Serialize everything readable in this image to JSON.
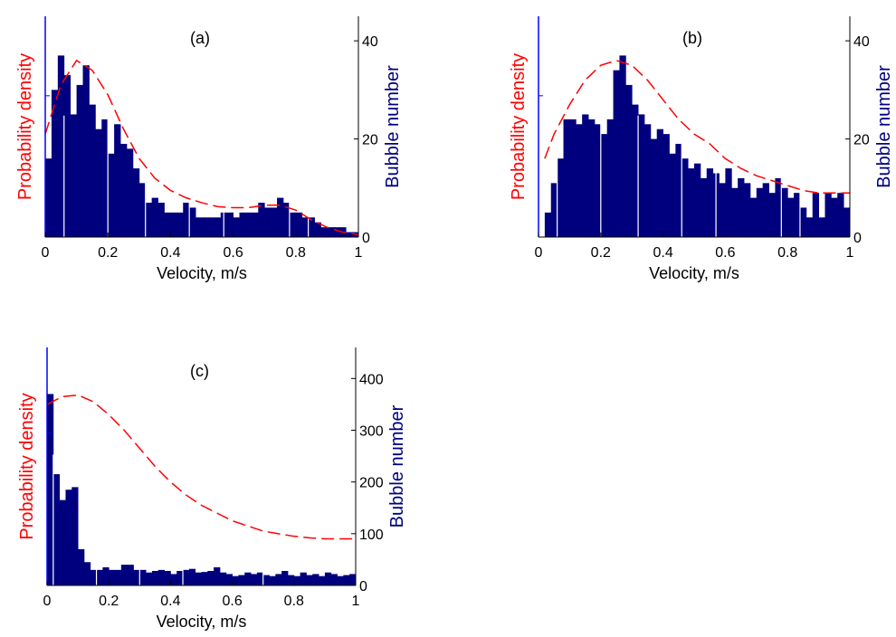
{
  "chart_data": [
    {
      "type": "bar",
      "panel_label": "(a)",
      "xlabel": "Velocity, m/s",
      "ylabel_left": "Probability density",
      "ylabel_right": "Bubble number",
      "xlim": [
        0,
        1
      ],
      "ylim_right": [
        0,
        45
      ],
      "xticks": [
        "0",
        "0.2",
        "0.4",
        "0.6",
        "0.8",
        "1"
      ],
      "yticks_right": [
        "0",
        "20",
        "40"
      ],
      "bar_width": 0.02,
      "bin_starts": [
        0,
        0.02,
        0.04,
        0.06,
        0.08,
        0.1,
        0.12,
        0.14,
        0.16,
        0.18,
        0.2,
        0.22,
        0.24,
        0.26,
        0.28,
        0.3,
        0.32,
        0.34,
        0.36,
        0.38,
        0.4,
        0.42,
        0.44,
        0.46,
        0.48,
        0.5,
        0.52,
        0.54,
        0.56,
        0.58,
        0.6,
        0.62,
        0.64,
        0.66,
        0.68,
        0.7,
        0.72,
        0.74,
        0.76,
        0.78,
        0.8,
        0.82,
        0.84,
        0.86,
        0.88,
        0.9,
        0.92,
        0.94,
        0.96,
        0.98
      ],
      "values": [
        16,
        30,
        37,
        33,
        25,
        31,
        35,
        27,
        22,
        24,
        17,
        23,
        19,
        18,
        14,
        11,
        7,
        8,
        7,
        5,
        5,
        5,
        7,
        6,
        4,
        4,
        4,
        4,
        5,
        5,
        4,
        5,
        5,
        5,
        7,
        6,
        6,
        8,
        7,
        5,
        5,
        4,
        4,
        3,
        2,
        2,
        2,
        2,
        1,
        1
      ],
      "bar_color": "#00007F",
      "curve_color": "#FF0000",
      "density_curve_right_axis_units": [
        [
          0,
          21
        ],
        [
          0.05,
          31
        ],
        [
          0.1,
          36
        ],
        [
          0.15,
          34
        ],
        [
          0.2,
          29
        ],
        [
          0.25,
          22
        ],
        [
          0.3,
          16
        ],
        [
          0.35,
          12
        ],
        [
          0.4,
          9.5
        ],
        [
          0.45,
          8
        ],
        [
          0.5,
          7
        ],
        [
          0.55,
          6.2
        ],
        [
          0.6,
          6
        ],
        [
          0.65,
          6
        ],
        [
          0.7,
          6.5
        ],
        [
          0.75,
          6.5
        ],
        [
          0.8,
          5.5
        ],
        [
          0.85,
          3.5
        ],
        [
          0.9,
          2
        ],
        [
          0.95,
          1
        ],
        [
          1,
          0.5
        ]
      ]
    },
    {
      "type": "bar",
      "panel_label": "(b)",
      "xlabel": "Velocity, m/s",
      "ylabel_left": "Probability density",
      "ylabel_right": "Bubble number",
      "xlim": [
        0,
        1
      ],
      "ylim_right": [
        0,
        45
      ],
      "xticks": [
        "0",
        "0.2",
        "0.4",
        "0.6",
        "0.8",
        "1"
      ],
      "yticks_right": [
        "0",
        "20",
        "40"
      ],
      "bar_width": 0.02,
      "bin_starts": [
        0,
        0.02,
        0.04,
        0.06,
        0.08,
        0.1,
        0.12,
        0.14,
        0.16,
        0.18,
        0.2,
        0.22,
        0.24,
        0.26,
        0.28,
        0.3,
        0.32,
        0.34,
        0.36,
        0.38,
        0.4,
        0.42,
        0.44,
        0.46,
        0.48,
        0.5,
        0.52,
        0.54,
        0.56,
        0.58,
        0.6,
        0.62,
        0.64,
        0.66,
        0.68,
        0.7,
        0.72,
        0.74,
        0.76,
        0.78,
        0.8,
        0.82,
        0.84,
        0.86,
        0.88,
        0.9,
        0.92,
        0.94,
        0.96,
        0.98
      ],
      "values": [
        0,
        5,
        11,
        16,
        24,
        24,
        23,
        25,
        24,
        23,
        21,
        24,
        34,
        37,
        31,
        27,
        25,
        23,
        20,
        22,
        21,
        17,
        19,
        16,
        14,
        15,
        12,
        14,
        13,
        11,
        14,
        10,
        12,
        11,
        8,
        10,
        11,
        9,
        12,
        10,
        8,
        9,
        6,
        4,
        9,
        4,
        9,
        8,
        9,
        6
      ],
      "bar_color": "#00007F",
      "curve_color": "#FF0000",
      "density_curve_right_axis_units": [
        [
          0.02,
          16
        ],
        [
          0.05,
          21
        ],
        [
          0.1,
          27
        ],
        [
          0.15,
          32
        ],
        [
          0.2,
          35
        ],
        [
          0.25,
          36
        ],
        [
          0.3,
          35
        ],
        [
          0.35,
          32
        ],
        [
          0.4,
          28
        ],
        [
          0.45,
          24
        ],
        [
          0.5,
          21
        ],
        [
          0.55,
          19
        ],
        [
          0.6,
          16
        ],
        [
          0.65,
          14
        ],
        [
          0.7,
          12.5
        ],
        [
          0.75,
          11.5
        ],
        [
          0.8,
          10.5
        ],
        [
          0.85,
          9.5
        ],
        [
          0.9,
          9
        ],
        [
          0.95,
          9
        ],
        [
          1,
          9
        ]
      ]
    },
    {
      "type": "bar",
      "panel_label": "(c)",
      "xlabel": "Velocity, m/s",
      "ylabel_left": "Probability density",
      "ylabel_right": "Bubble number",
      "xlim": [
        0,
        1
      ],
      "ylim_right": [
        0,
        460
      ],
      "xticks": [
        "0",
        "0.2",
        "0.4",
        "0.6",
        "0.8",
        "1"
      ],
      "yticks_right": [
        "0",
        "100",
        "200",
        "300",
        "400"
      ],
      "bar_width": 0.02,
      "bin_starts": [
        0,
        0.02,
        0.04,
        0.06,
        0.08,
        0.1,
        0.12,
        0.14,
        0.16,
        0.18,
        0.2,
        0.22,
        0.24,
        0.26,
        0.28,
        0.3,
        0.32,
        0.34,
        0.36,
        0.38,
        0.4,
        0.42,
        0.44,
        0.46,
        0.48,
        0.5,
        0.52,
        0.54,
        0.56,
        0.58,
        0.6,
        0.62,
        0.64,
        0.66,
        0.68,
        0.7,
        0.72,
        0.74,
        0.76,
        0.78,
        0.8,
        0.82,
        0.84,
        0.86,
        0.88,
        0.9,
        0.92,
        0.94,
        0.96,
        0.98
      ],
      "values": [
        370,
        215,
        165,
        185,
        190,
        70,
        45,
        30,
        30,
        35,
        30,
        30,
        40,
        40,
        30,
        30,
        25,
        28,
        30,
        28,
        22,
        28,
        30,
        32,
        25,
        26,
        28,
        35,
        25,
        22,
        18,
        20,
        25,
        22,
        25,
        20,
        18,
        22,
        28,
        20,
        18,
        25,
        20,
        22,
        18,
        25,
        22,
        18,
        20,
        22
      ],
      "bar_color": "#00007F",
      "curve_color": "#FF0000",
      "density_curve_right_axis_units": [
        [
          0,
          350
        ],
        [
          0.05,
          365
        ],
        [
          0.1,
          368
        ],
        [
          0.15,
          355
        ],
        [
          0.2,
          330
        ],
        [
          0.25,
          300
        ],
        [
          0.3,
          265
        ],
        [
          0.35,
          230
        ],
        [
          0.4,
          200
        ],
        [
          0.45,
          175
        ],
        [
          0.5,
          155
        ],
        [
          0.55,
          140
        ],
        [
          0.6,
          125
        ],
        [
          0.65,
          115
        ],
        [
          0.7,
          105
        ],
        [
          0.75,
          100
        ],
        [
          0.8,
          95
        ],
        [
          0.85,
          92
        ],
        [
          0.9,
          90
        ],
        [
          0.95,
          90
        ],
        [
          1,
          90
        ]
      ]
    }
  ],
  "style": {
    "left_axis_color": "#0000FF",
    "left_label_color": "#FF0000",
    "right_label_color": "#00007F",
    "axis_color": "#000000"
  }
}
